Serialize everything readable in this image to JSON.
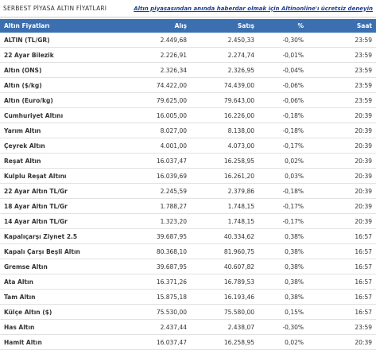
{
  "header": {
    "title": "SERBEST PİYASA ALTIN FİYATLARI",
    "link": "Altın piyasasından anında haberdar olmak için Altinonline'ı ücretsiz deneyin"
  },
  "table": {
    "columns": [
      "Altın Fiyatları",
      "Alış",
      "Satış",
      "%",
      "Saat"
    ],
    "rows": [
      [
        "ALTIN (TL/GR)",
        "2.449,68",
        "2.450,33",
        "-0,30%",
        "23:59"
      ],
      [
        "22 Ayar Bilezik",
        "2.226,91",
        "2.274,74",
        "-0,01%",
        "23:59"
      ],
      [
        "Altın (ONS)",
        "2.326,34",
        "2.326,95",
        "-0,04%",
        "23:59"
      ],
      [
        "Altın ($/kg)",
        "74.422,00",
        "74.439,00",
        "-0,06%",
        "23:59"
      ],
      [
        "Altın (Euro/kg)",
        "79.625,00",
        "79.643,00",
        "-0,06%",
        "23:59"
      ],
      [
        "Cumhuriyet Altını",
        "16.005,00",
        "16.226,00",
        "-0,18%",
        "20:39"
      ],
      [
        "Yarım Altın",
        "8.027,00",
        "8.138,00",
        "-0,18%",
        "20:39"
      ],
      [
        "Çeyrek Altın",
        "4.001,00",
        "4.073,00",
        "-0,17%",
        "20:39"
      ],
      [
        "Reşat Altın",
        "16.037,47",
        "16.258,95",
        "0,02%",
        "20:39"
      ],
      [
        "Kulplu Reşat Altını",
        "16.039,69",
        "16.261,20",
        "0,03%",
        "20:39"
      ],
      [
        "22 Ayar Altın TL/Gr",
        "2.245,59",
        "2.379,86",
        "-0,18%",
        "20:39"
      ],
      [
        "18 Ayar Altın TL/Gr",
        "1.788,27",
        "1.748,15",
        "-0,17%",
        "20:39"
      ],
      [
        "14 Ayar Altın TL/Gr",
        "1.323,20",
        "1.748,15",
        "-0,17%",
        "20:39"
      ],
      [
        "Kapalıçarşı Ziynet 2.5",
        "39.687,95",
        "40.334,62",
        "0,38%",
        "16:57"
      ],
      [
        "Kapalı Çarşı Beşli Altın",
        "80.368,10",
        "81.960,75",
        "0,38%",
        "16:57"
      ],
      [
        "Gremse Altın",
        "39.687,95",
        "40.607,82",
        "0,38%",
        "16:57"
      ],
      [
        "Ata Altın",
        "16.371,26",
        "16.789,53",
        "0,38%",
        "16:57"
      ],
      [
        "Tam Altın",
        "15.875,18",
        "16.193,46",
        "0,38%",
        "16:57"
      ],
      [
        "Külçe Altın ($)",
        "75.530,00",
        "75.580,00",
        "0,15%",
        "16:57"
      ],
      [
        "Has Altın",
        "2.437,44",
        "2.438,07",
        "-0,30%",
        "23:59"
      ],
      [
        "Hamit Altın",
        "16.037,47",
        "16.258,95",
        "0,02%",
        "20:39"
      ]
    ]
  }
}
